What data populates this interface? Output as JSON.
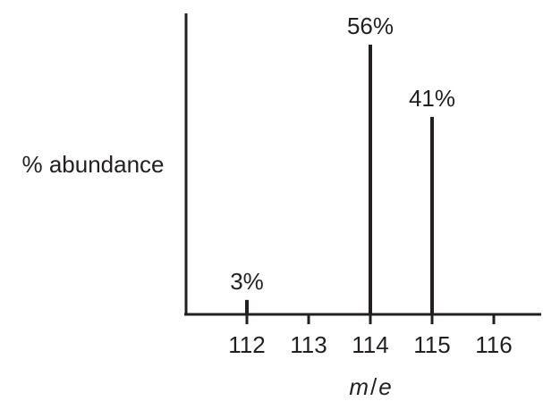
{
  "chart_data": {
    "type": "bar",
    "title": "",
    "xlabel_parts": {
      "m": "m",
      "sep": "/",
      "e": "e"
    },
    "ylabel": "% abundance",
    "categories": [
      "112",
      "113",
      "114",
      "115",
      "116"
    ],
    "x": [
      112,
      114,
      115
    ],
    "values": [
      3,
      56,
      41
    ],
    "data_labels": [
      "3%",
      "56%",
      "41%"
    ],
    "xlim": [
      111,
      117
    ],
    "ylim": [
      0,
      62
    ],
    "grid": false,
    "legend": "none",
    "colors": {
      "ink": "#231f20",
      "background": "#ffffff"
    }
  }
}
